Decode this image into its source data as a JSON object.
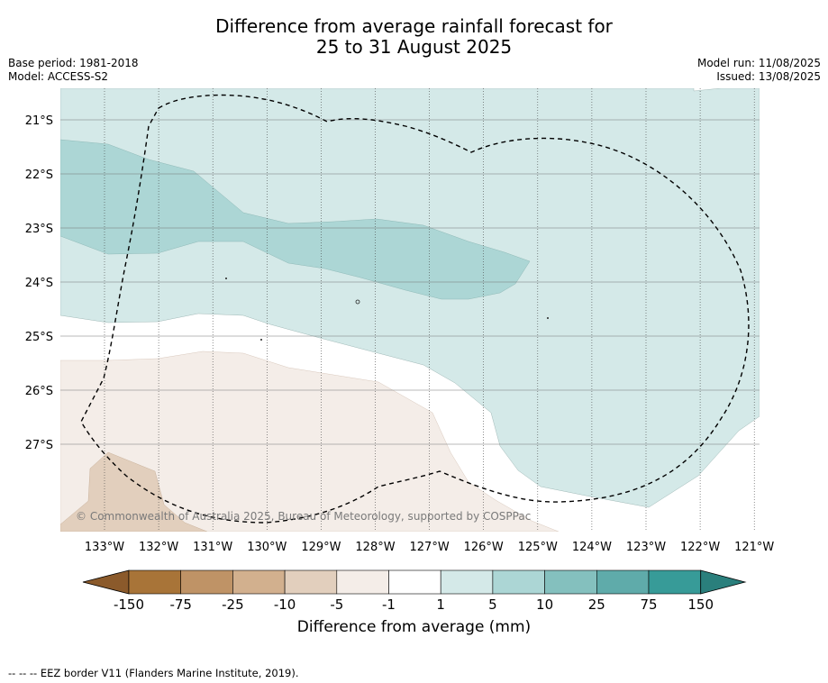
{
  "header": {
    "title_line1": "Difference from average rainfall forecast for",
    "title_line2": "25 to 31 August 2025",
    "base_period": "Base period: 1981-2018",
    "model": "Model: ACCESS-S2",
    "model_run": "Model run: 11/08/2025",
    "issued": "Issued: 13/08/2025"
  },
  "map": {
    "lon_ticks": [
      "133°W",
      "132°W",
      "131°W",
      "130°W",
      "129°W",
      "128°W",
      "127°W",
      "126°W",
      "125°W",
      "124°W",
      "123°W",
      "122°W",
      "121°W"
    ],
    "lat_ticks": [
      "21°S",
      "22°S",
      "23°S",
      "24°S",
      "25°S",
      "26°S",
      "27°S"
    ],
    "credit": "© Commonwealth of Australia 2025, Bureau of Meteorology, supported by COSPPac"
  },
  "colorbar": {
    "labels": [
      "-150",
      "-75",
      "-25",
      "-10",
      "-5",
      "-1",
      "1",
      "5",
      "10",
      "25",
      "75",
      "150"
    ],
    "colors": [
      "#a87438",
      "#bf9366",
      "#d2b08e",
      "#e2cfbd",
      "#f4ede8",
      "#ffffff",
      "#d4e9e8",
      "#acd6d5",
      "#84c0be",
      "#5fabaa",
      "#379b98"
    ],
    "extend_low_color": "#8b5a2b",
    "extend_high_color": "#2a7f7c",
    "title": "Difference from average (mm)"
  },
  "footer": {
    "text": "-- -- -- EEZ border V11 (Flanders Marine Institute, 2019)."
  }
}
